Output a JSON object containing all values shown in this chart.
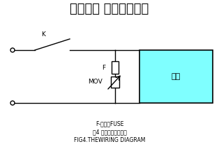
{
  "title": "踏歌电子 压敏电阻厂家",
  "bg_color": "#ffffff",
  "line_color": "#000000",
  "box_fill": "#7fffff",
  "label_K": "K",
  "label_F": "F",
  "label_MOV": "MOV",
  "label_device": "设备",
  "caption1": "F-熔断器FUSE",
  "caption2": "图4 压敏电阻器接线图",
  "caption3": "FIG4.THEWIRING DIAGRAM",
  "title_fontsize": 13,
  "label_fontsize": 6.5,
  "device_fontsize": 8,
  "caption_fontsize": 5.5
}
